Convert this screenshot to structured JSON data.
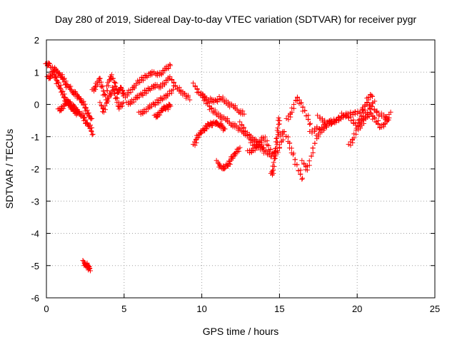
{
  "chart_data": {
    "type": "scatter",
    "title": "Day 280 of 2019, Sidereal Day-to-day VTEC variation (SDTVAR) for receiver pygr",
    "xlabel": "GPS time / hours",
    "ylabel": "SDTVAR / TECUs",
    "xlim": [
      0,
      25
    ],
    "ylim": [
      -6,
      2
    ],
    "xticks": [
      0,
      5,
      10,
      15,
      20,
      25
    ],
    "yticks": [
      -6,
      -5,
      -4,
      -3,
      -2,
      -1,
      0,
      1,
      2
    ],
    "grid": true,
    "marker": "+",
    "color": "#ff0000",
    "series": [
      {
        "name": "SDTVAR",
        "traces": [
          {
            "x": [
              0.0,
              0.2,
              0.4,
              0.6,
              0.8,
              1.0,
              1.2,
              1.4,
              1.6,
              1.8,
              2.0,
              2.2,
              2.4,
              2.6,
              2.8,
              3.0
            ],
            "y": [
              1.2,
              1.3,
              1.0,
              0.8,
              0.6,
              0.4,
              0.2,
              0.0,
              -0.1,
              -0.1,
              -0.2,
              -0.3,
              -0.4,
              -0.6,
              -0.7,
              -0.9
            ]
          },
          {
            "x": [
              0.1,
              0.3,
              0.5,
              0.7,
              0.9,
              1.1,
              1.3,
              1.5,
              1.7,
              1.9,
              2.1,
              2.3,
              2.5,
              2.7,
              2.9
            ],
            "y": [
              0.8,
              0.9,
              1.1,
              1.0,
              0.9,
              0.8,
              0.6,
              0.5,
              0.4,
              0.3,
              0.2,
              0.1,
              -0.1,
              -0.3,
              -0.5
            ]
          },
          {
            "x": [
              0.8,
              1.0,
              1.2,
              1.4,
              1.6,
              1.8,
              2.0
            ],
            "y": [
              -0.2,
              -0.1,
              0.0,
              0.1,
              0.0,
              -0.2,
              -0.3
            ]
          },
          {
            "x": [
              2.4,
              2.5,
              2.6,
              2.7,
              2.8
            ],
            "y": [
              -4.9,
              -4.95,
              -5.0,
              -5.05,
              -5.1
            ]
          },
          {
            "x": [
              3.0,
              3.2,
              3.4,
              3.6,
              3.8,
              4.0,
              4.2,
              4.4,
              4.6,
              4.8,
              5.0
            ],
            "y": [
              0.4,
              0.6,
              0.8,
              0.5,
              0.2,
              0.7,
              0.9,
              0.6,
              0.4,
              0.5,
              0.3
            ]
          },
          {
            "x": [
              3.5,
              3.7,
              3.9,
              4.1,
              4.3,
              4.5,
              4.7,
              4.9
            ],
            "y": [
              0.0,
              -0.2,
              0.1,
              0.3,
              0.5,
              0.2,
              -0.1,
              0.0
            ]
          },
          {
            "x": [
              5.0,
              5.3,
              5.6,
              5.9,
              6.2,
              6.5,
              6.8,
              7.1,
              7.4,
              7.7,
              8.0
            ],
            "y": [
              0.2,
              0.4,
              0.5,
              0.7,
              0.8,
              0.9,
              1.0,
              0.9,
              1.0,
              1.1,
              1.2
            ]
          },
          {
            "x": [
              5.2,
              5.5,
              5.8,
              6.1,
              6.4,
              6.7,
              7.0,
              7.3,
              7.6,
              7.9
            ],
            "y": [
              0.0,
              0.1,
              0.2,
              0.3,
              0.4,
              0.5,
              0.6,
              0.5,
              0.7,
              0.8
            ]
          },
          {
            "x": [
              6.0,
              6.3,
              6.6,
              6.9,
              7.2,
              7.5,
              7.8,
              8.1
            ],
            "y": [
              -0.3,
              -0.2,
              -0.1,
              0.0,
              0.1,
              0.2,
              0.3,
              0.4
            ]
          },
          {
            "x": [
              7.0,
              7.2,
              7.4,
              7.6,
              7.8,
              8.0
            ],
            "y": [
              -0.4,
              -0.3,
              -0.2,
              -0.1,
              -0.1,
              0.0
            ]
          },
          {
            "x": [
              8.0,
              8.3,
              8.6,
              8.9,
              9.2
            ],
            "y": [
              0.8,
              0.6,
              0.4,
              0.3,
              0.2
            ]
          },
          {
            "x": [
              9.5,
              9.8,
              10.1,
              10.4,
              10.7,
              11.0,
              11.3,
              11.6,
              11.9,
              12.2,
              12.5,
              12.8,
              13.1,
              13.4,
              13.7,
              14.0
            ],
            "y": [
              0.6,
              0.4,
              0.2,
              0.0,
              -0.2,
              -0.3,
              -0.4,
              -0.5,
              -0.6,
              -0.7,
              -0.8,
              -0.9,
              -1.0,
              -1.1,
              -1.2,
              -1.3
            ]
          },
          {
            "x": [
              10.0,
              10.3,
              10.6,
              10.9,
              11.2,
              11.5,
              11.8,
              12.1,
              12.4,
              12.7
            ],
            "y": [
              0.3,
              0.2,
              0.1,
              0.1,
              0.2,
              0.1,
              0.0,
              -0.1,
              -0.2,
              -0.3
            ]
          },
          {
            "x": [
              9.5,
              9.7,
              9.9,
              10.1,
              10.3,
              10.5,
              10.7,
              10.9,
              11.1,
              11.3,
              11.5
            ],
            "y": [
              -1.3,
              -1.0,
              -0.9,
              -0.8,
              -0.7,
              -0.6,
              -0.6,
              -0.6,
              -0.6,
              -0.7,
              -0.8
            ]
          },
          {
            "x": [
              11.0,
              11.2,
              11.4,
              11.6,
              11.8,
              12.0,
              12.2,
              12.4
            ],
            "y": [
              -1.8,
              -1.9,
              -2.0,
              -1.9,
              -1.8,
              -1.6,
              -1.5,
              -1.4
            ]
          },
          {
            "x": [
              12.5,
              12.8,
              13.1,
              13.4,
              13.7,
              14.0,
              14.3,
              14.6,
              14.9,
              15.2
            ],
            "y": [
              -0.6,
              -0.8,
              -1.1,
              -1.3,
              -1.2,
              -1.0,
              -1.3,
              -1.6,
              -1.4,
              -1.1
            ]
          },
          {
            "x": [
              13.0,
              13.3,
              13.6,
              13.9,
              14.2,
              14.5
            ],
            "y": [
              -1.5,
              -1.4,
              -1.3,
              -1.4,
              -1.5,
              -1.6
            ]
          },
          {
            "x": [
              14.5,
              14.6,
              14.7,
              14.8,
              14.9,
              15.0
            ],
            "y": [
              -2.2,
              -2.0,
              -1.6,
              -1.2,
              -0.8,
              -0.4
            ]
          },
          {
            "x": [
              15.0,
              15.3,
              15.6,
              15.9,
              16.2,
              16.5
            ],
            "y": [
              -1.0,
              -0.8,
              -1.2,
              -1.6,
              -2.0,
              -2.3
            ]
          },
          {
            "x": [
              15.5,
              15.8,
              16.1,
              16.4,
              16.7,
              17.0
            ],
            "y": [
              -0.5,
              -0.2,
              0.2,
              0.0,
              -0.3,
              -0.6
            ]
          },
          {
            "x": [
              16.5,
              16.8,
              17.1,
              17.4,
              17.7,
              18.0,
              18.3
            ],
            "y": [
              -1.8,
              -2.0,
              -1.5,
              -1.0,
              -0.8,
              -0.6,
              -0.5
            ]
          },
          {
            "x": [
              17.0,
              17.4,
              17.8,
              18.2,
              18.6,
              19.0,
              19.4,
              19.8,
              20.2,
              20.6,
              21.0,
              21.4,
              21.8,
              22.0
            ],
            "y": [
              -0.9,
              -0.7,
              -0.8,
              -0.6,
              -0.5,
              -0.4,
              -0.3,
              -0.3,
              -0.2,
              0.0,
              -0.1,
              -0.3,
              -0.4,
              -0.5
            ]
          },
          {
            "x": [
              17.5,
              17.9,
              18.3,
              18.7,
              19.1,
              19.5,
              19.9,
              20.3,
              20.7,
              21.1
            ],
            "y": [
              -0.4,
              -0.5,
              -0.6,
              -0.5,
              -0.3,
              -0.4,
              -0.6,
              -0.5,
              -0.2,
              0.1
            ]
          },
          {
            "x": [
              19.5,
              19.8,
              20.1,
              20.4,
              20.7,
              21.0
            ],
            "y": [
              -1.3,
              -1.0,
              -0.6,
              -0.2,
              0.2,
              0.3
            ]
          },
          {
            "x": [
              20.0,
              20.3,
              20.6,
              20.9,
              21.2,
              21.5,
              21.8,
              22.1
            ],
            "y": [
              -0.8,
              -0.6,
              -0.4,
              -0.3,
              -0.5,
              -0.7,
              -0.6,
              -0.3
            ]
          }
        ]
      }
    ]
  }
}
